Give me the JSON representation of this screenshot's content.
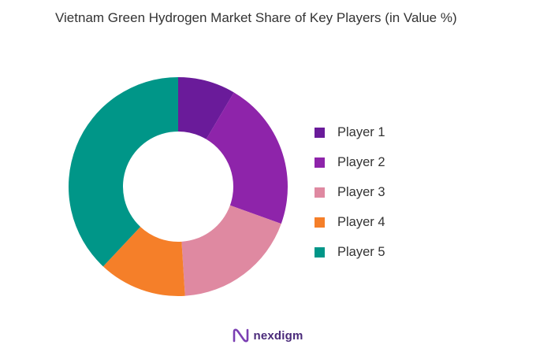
{
  "chart_data": {
    "type": "pie",
    "title": "Vietnam Green Hydrogen Market Share of Key Players (in Value %)",
    "categories": [
      "Player 1",
      "Player 2",
      "Player 3",
      "Player 4",
      "Player 5"
    ],
    "values": [
      8.5,
      22,
      18.5,
      13,
      38
    ],
    "colors": [
      "#6a1b9a",
      "#8e24aa",
      "#df89a1",
      "#f57f29",
      "#009688"
    ],
    "legend_position": "right",
    "hole": true
  },
  "brand": {
    "name": "nexdigm",
    "logo_icon": "nexdigm-logo-icon"
  }
}
